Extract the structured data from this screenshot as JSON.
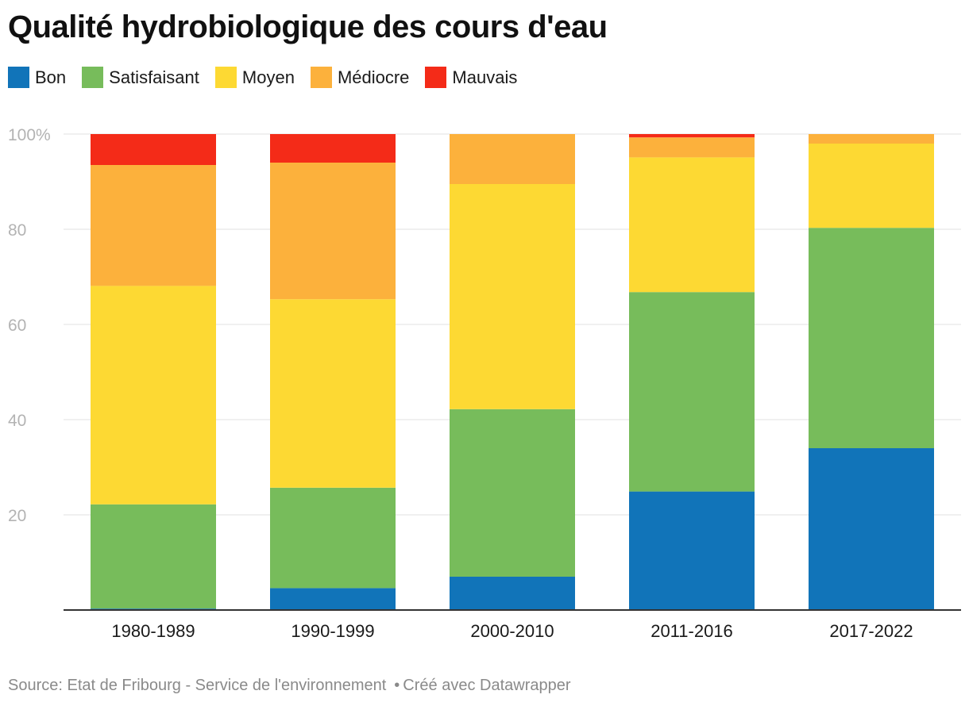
{
  "title": "Qualité hydrobiologique des cours d'eau",
  "source": {
    "text": "Source: Etat de Fribourg - Service de l'environnement",
    "separator": "•",
    "credit": "Créé avec Datawrapper"
  },
  "chart_data": {
    "type": "bar",
    "stacked": true,
    "title": "Qualité hydrobiologique des cours d'eau",
    "xlabel": "",
    "ylabel": "",
    "ylim": [
      0,
      100
    ],
    "yticks": [
      20,
      40,
      60,
      80,
      100
    ],
    "ytick_labels": [
      "20",
      "40",
      "60",
      "80",
      "100%"
    ],
    "grid": true,
    "legend_position": "top-left",
    "categories": [
      "1980-1989",
      "1990-1999",
      "2000-2010",
      "2011-2016",
      "2017-2022"
    ],
    "series": [
      {
        "name": "Bon",
        "color": "#1174b9",
        "values": [
          0.3,
          4.6,
          7.0,
          24.9,
          34.0
        ]
      },
      {
        "name": "Satisfaisant",
        "color": "#77bc5b",
        "values": [
          21.9,
          21.1,
          35.2,
          41.9,
          46.3
        ]
      },
      {
        "name": "Moyen",
        "color": "#fdd933",
        "values": [
          45.9,
          39.6,
          47.3,
          28.3,
          17.7
        ]
      },
      {
        "name": "Médiocre",
        "color": "#fcb13c",
        "values": [
          25.4,
          28.7,
          10.5,
          4.2,
          2.0
        ]
      },
      {
        "name": "Mauvais",
        "color": "#f42b18",
        "values": [
          6.5,
          6.0,
          0.0,
          0.7,
          0.0
        ]
      }
    ]
  }
}
